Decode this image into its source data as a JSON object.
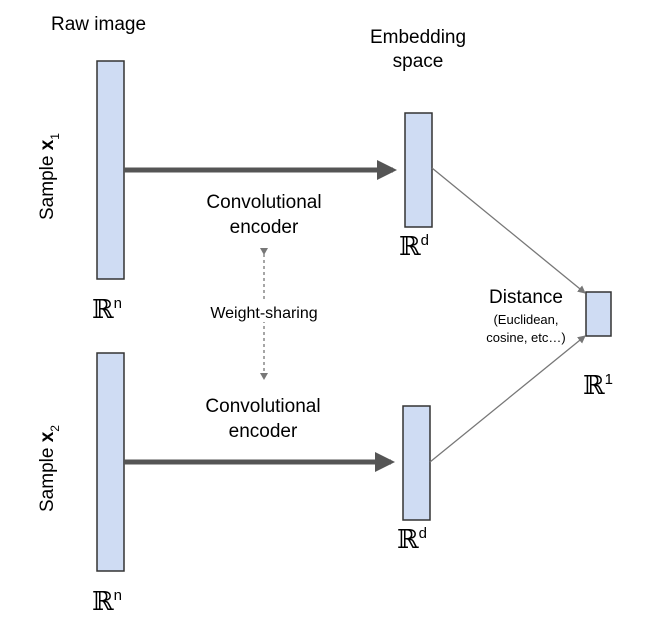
{
  "labels": {
    "raw_image": "Raw image",
    "embedding_space_line1": "Embedding",
    "embedding_space_line2": "space",
    "sample1_prefix": "Sample ",
    "sample1_var": "x",
    "sample1_sub": "1",
    "sample2_prefix": "Sample ",
    "sample2_var": "x",
    "sample2_sub": "2",
    "encoder_top_line1": "Convolutional",
    "encoder_top_line2": "encoder",
    "encoder_bottom_line1": "Convolutional",
    "encoder_bottom_line2": "encoder",
    "weight_sharing": "Weight-sharing",
    "distance_title": "Distance",
    "distance_detail_line1": "(Euclidean,",
    "distance_detail_line2": "cosine, etc…)",
    "space_symbol": "ℝ",
    "input_dim_top": "n",
    "input_dim_bottom": "n",
    "embed_dim_top": "d",
    "embed_dim_bottom": "d",
    "output_dim": "1"
  },
  "colors": {
    "box_fill": "#cfdcf3",
    "box_stroke": "#333333",
    "thick_arrow": "#555555",
    "thin_arrow": "#777777",
    "dashed_arrow": "#777777"
  }
}
